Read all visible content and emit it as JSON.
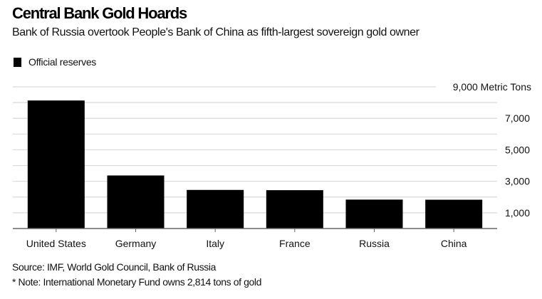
{
  "header": {
    "title": "Central Bank Gold Hoards",
    "subtitle": "Bank of Russia overtook People's Bank of China as fifth-largest sovereign gold owner"
  },
  "legend": {
    "label": "Official reserves",
    "color": "#000000"
  },
  "footer": {
    "source": "Source: IMF, World Gold Council, Bank of Russia",
    "note": "* Note: International Monetary Fund owns 2,814 tons of gold"
  },
  "chart_data": {
    "type": "bar",
    "title": "Central Bank Gold Hoards",
    "subtitle": "Bank of Russia overtook People's Bank of China as fifth-largest sovereign gold owner",
    "xlabel": "",
    "ylabel": "Metric Tons",
    "categories": [
      "United States",
      "Germany",
      "Italy",
      "France",
      "Russia",
      "China"
    ],
    "series": [
      {
        "name": "Official reserves",
        "color": "#000000",
        "values": [
          8133,
          3370,
          2452,
          2436,
          1838,
          1830
        ]
      }
    ],
    "ylim": [
      0,
      9000
    ],
    "y_gridlines": [
      1000,
      2000,
      3000,
      4000,
      5000,
      6000,
      7000,
      8000,
      9000
    ],
    "y_tick_values": [
      1000,
      3000,
      5000,
      7000,
      9000
    ],
    "y_tick_labels": [
      "1,000",
      "3,000",
      "5,000",
      "7,000",
      "9,000 Metric Tons"
    ],
    "y_axis_side": "right",
    "grid": true,
    "legend_position": "top-left",
    "colors": {
      "bar": "#000000",
      "grid": "#d9d9d9",
      "axis": "#666666"
    }
  }
}
